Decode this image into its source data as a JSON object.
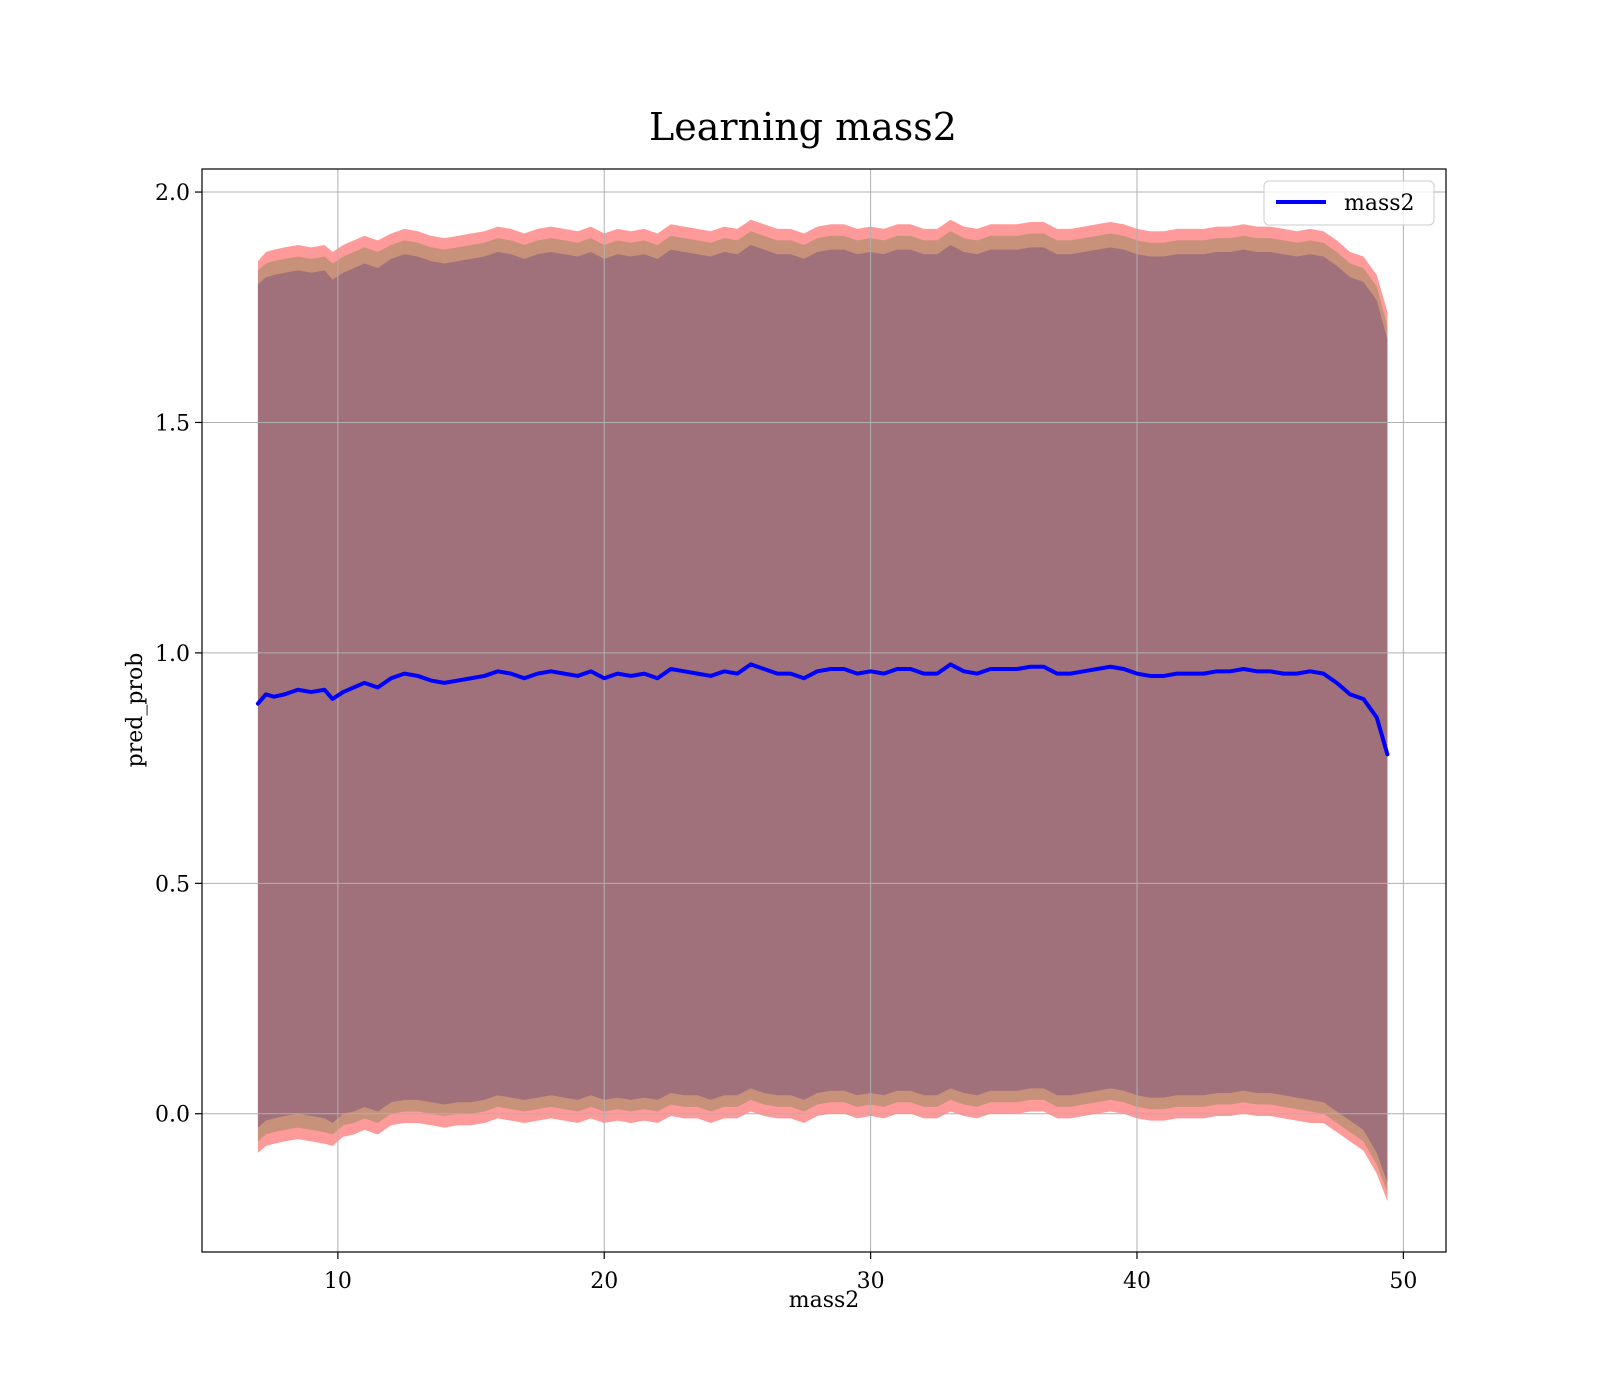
{
  "chart_data": {
    "type": "line",
    "title": "Learning mass2",
    "xlabel": "mass2",
    "ylabel": "pred_prob",
    "xlim": [
      4.9,
      51.6
    ],
    "ylim": [
      -0.3,
      2.05
    ],
    "xticks": [
      10,
      20,
      30,
      40,
      50
    ],
    "yticks": [
      0.0,
      0.5,
      1.0,
      1.5,
      2.0
    ],
    "ytick_labels": [
      "0.0",
      "0.5",
      "1.0",
      "1.5",
      "2.0"
    ],
    "grid": true,
    "legend": {
      "placement": "top-right",
      "entries": [
        "mass2"
      ]
    },
    "colors": {
      "line": "#0000ff",
      "band_outer": "#ff9a9a",
      "band_middle": "#c8917a",
      "band_inner": "#a0717a",
      "grid": "#b0b0b0"
    },
    "series": [
      {
        "name": "mass2",
        "x": [
          7.0,
          7.3,
          7.6,
          8.0,
          8.5,
          9.0,
          9.5,
          9.8,
          10.2,
          10.6,
          11.0,
          11.5,
          12.0,
          12.5,
          13.0,
          13.5,
          14.0,
          14.5,
          15.0,
          15.5,
          16.0,
          16.5,
          17.0,
          17.5,
          18.0,
          18.5,
          19.0,
          19.5,
          20.0,
          20.5,
          21.0,
          21.5,
          22.0,
          22.5,
          23.0,
          23.5,
          24.0,
          24.5,
          25.0,
          25.5,
          26.0,
          26.5,
          27.0,
          27.5,
          28.0,
          28.5,
          29.0,
          29.5,
          30.0,
          30.5,
          31.0,
          31.5,
          32.0,
          32.5,
          33.0,
          33.5,
          34.0,
          34.5,
          35.0,
          35.5,
          36.0,
          36.5,
          37.0,
          37.5,
          38.0,
          38.5,
          39.0,
          39.5,
          40.0,
          40.5,
          41.0,
          41.5,
          42.0,
          42.5,
          43.0,
          43.5,
          44.0,
          44.5,
          45.0,
          45.5,
          46.0,
          46.5,
          47.0,
          47.5,
          48.0,
          48.5,
          49.0,
          49.4
        ],
        "y": [
          0.89,
          0.91,
          0.905,
          0.91,
          0.92,
          0.915,
          0.92,
          0.9,
          0.915,
          0.925,
          0.935,
          0.925,
          0.945,
          0.955,
          0.95,
          0.94,
          0.935,
          0.94,
          0.945,
          0.95,
          0.96,
          0.955,
          0.945,
          0.955,
          0.96,
          0.955,
          0.95,
          0.96,
          0.945,
          0.955,
          0.95,
          0.955,
          0.945,
          0.965,
          0.96,
          0.955,
          0.95,
          0.96,
          0.955,
          0.975,
          0.965,
          0.955,
          0.955,
          0.945,
          0.96,
          0.965,
          0.965,
          0.955,
          0.96,
          0.955,
          0.965,
          0.965,
          0.955,
          0.955,
          0.975,
          0.96,
          0.955,
          0.965,
          0.965,
          0.965,
          0.97,
          0.97,
          0.955,
          0.955,
          0.96,
          0.965,
          0.97,
          0.965,
          0.955,
          0.95,
          0.95,
          0.955,
          0.955,
          0.955,
          0.96,
          0.96,
          0.965,
          0.96,
          0.96,
          0.955,
          0.955,
          0.96,
          0.955,
          0.935,
          0.91,
          0.9,
          0.86,
          0.78
        ]
      }
    ],
    "bands": [
      {
        "name": "outer",
        "lower": [
          -0.085,
          -0.07,
          -0.065,
          -0.06,
          -0.055,
          -0.06,
          -0.065,
          -0.07,
          -0.05,
          -0.045,
          -0.035,
          -0.045,
          -0.025,
          -0.02,
          -0.02,
          -0.025,
          -0.03,
          -0.025,
          -0.025,
          -0.02,
          -0.01,
          -0.015,
          -0.02,
          -0.015,
          -0.01,
          -0.015,
          -0.02,
          -0.01,
          -0.02,
          -0.015,
          -0.02,
          -0.015,
          -0.02,
          -0.005,
          -0.01,
          -0.01,
          -0.02,
          -0.01,
          -0.01,
          0.005,
          -0.005,
          -0.01,
          -0.01,
          -0.02,
          -0.005,
          0.0,
          0.0,
          -0.01,
          -0.005,
          -0.01,
          0.0,
          0.0,
          -0.01,
          -0.01,
          0.005,
          -0.005,
          -0.01,
          0.0,
          0.0,
          0.0,
          0.005,
          0.005,
          -0.01,
          -0.01,
          -0.005,
          0.0,
          0.005,
          0.0,
          -0.01,
          -0.015,
          -0.015,
          -0.01,
          -0.01,
          -0.01,
          -0.005,
          -0.005,
          0.0,
          -0.005,
          -0.005,
          -0.01,
          -0.015,
          -0.02,
          -0.02,
          -0.04,
          -0.06,
          -0.08,
          -0.13,
          -0.19
        ],
        "upper": [
          1.85,
          1.87,
          1.875,
          1.88,
          1.885,
          1.88,
          1.885,
          1.87,
          1.885,
          1.895,
          1.905,
          1.895,
          1.91,
          1.92,
          1.915,
          1.905,
          1.9,
          1.905,
          1.91,
          1.915,
          1.925,
          1.92,
          1.91,
          1.92,
          1.925,
          1.92,
          1.915,
          1.925,
          1.91,
          1.92,
          1.915,
          1.92,
          1.91,
          1.93,
          1.925,
          1.92,
          1.915,
          1.925,
          1.92,
          1.94,
          1.93,
          1.92,
          1.92,
          1.91,
          1.925,
          1.93,
          1.93,
          1.92,
          1.925,
          1.92,
          1.93,
          1.93,
          1.92,
          1.92,
          1.94,
          1.925,
          1.92,
          1.93,
          1.93,
          1.93,
          1.935,
          1.935,
          1.92,
          1.92,
          1.925,
          1.93,
          1.935,
          1.93,
          1.92,
          1.915,
          1.915,
          1.92,
          1.92,
          1.92,
          1.925,
          1.925,
          1.93,
          1.925,
          1.925,
          1.92,
          1.915,
          1.92,
          1.915,
          1.895,
          1.87,
          1.86,
          1.82,
          1.74
        ]
      },
      {
        "name": "middle",
        "lower": [
          -0.06,
          -0.045,
          -0.04,
          -0.035,
          -0.03,
          -0.035,
          -0.04,
          -0.045,
          -0.025,
          -0.02,
          -0.01,
          -0.02,
          0.0,
          0.005,
          0.005,
          0.0,
          -0.005,
          0.0,
          0.0,
          0.005,
          0.015,
          0.01,
          0.005,
          0.01,
          0.015,
          0.01,
          0.005,
          0.015,
          0.005,
          0.01,
          0.005,
          0.01,
          0.005,
          0.02,
          0.015,
          0.015,
          0.005,
          0.015,
          0.015,
          0.03,
          0.02,
          0.015,
          0.015,
          0.005,
          0.02,
          0.025,
          0.025,
          0.015,
          0.02,
          0.015,
          0.025,
          0.025,
          0.015,
          0.015,
          0.03,
          0.02,
          0.015,
          0.025,
          0.025,
          0.025,
          0.03,
          0.03,
          0.015,
          0.015,
          0.02,
          0.025,
          0.03,
          0.025,
          0.015,
          0.01,
          0.01,
          0.015,
          0.015,
          0.015,
          0.02,
          0.02,
          0.025,
          0.02,
          0.02,
          0.015,
          0.01,
          0.005,
          0.0,
          -0.02,
          -0.04,
          -0.06,
          -0.11,
          -0.17
        ],
        "upper": [
          1.83,
          1.845,
          1.85,
          1.855,
          1.86,
          1.855,
          1.86,
          1.845,
          1.86,
          1.87,
          1.88,
          1.87,
          1.885,
          1.895,
          1.89,
          1.88,
          1.875,
          1.88,
          1.885,
          1.89,
          1.9,
          1.895,
          1.885,
          1.895,
          1.9,
          1.895,
          1.89,
          1.9,
          1.885,
          1.895,
          1.89,
          1.895,
          1.885,
          1.905,
          1.9,
          1.895,
          1.89,
          1.9,
          1.895,
          1.915,
          1.905,
          1.895,
          1.895,
          1.885,
          1.9,
          1.905,
          1.905,
          1.895,
          1.9,
          1.895,
          1.905,
          1.905,
          1.895,
          1.895,
          1.915,
          1.9,
          1.895,
          1.905,
          1.905,
          1.905,
          1.91,
          1.91,
          1.895,
          1.895,
          1.9,
          1.905,
          1.91,
          1.905,
          1.895,
          1.89,
          1.89,
          1.895,
          1.895,
          1.895,
          1.9,
          1.9,
          1.905,
          1.9,
          1.9,
          1.895,
          1.89,
          1.895,
          1.89,
          1.87,
          1.845,
          1.835,
          1.795,
          1.71
        ]
      },
      {
        "name": "inner",
        "lower": [
          -0.03,
          -0.015,
          -0.01,
          -0.005,
          0.0,
          -0.005,
          -0.01,
          -0.02,
          0.0,
          0.005,
          0.015,
          0.005,
          0.025,
          0.03,
          0.03,
          0.025,
          0.02,
          0.025,
          0.025,
          0.03,
          0.04,
          0.035,
          0.03,
          0.035,
          0.04,
          0.035,
          0.03,
          0.04,
          0.03,
          0.035,
          0.03,
          0.035,
          0.03,
          0.045,
          0.04,
          0.04,
          0.03,
          0.04,
          0.04,
          0.055,
          0.045,
          0.04,
          0.04,
          0.03,
          0.045,
          0.05,
          0.05,
          0.04,
          0.045,
          0.04,
          0.05,
          0.05,
          0.04,
          0.04,
          0.055,
          0.045,
          0.04,
          0.05,
          0.05,
          0.05,
          0.055,
          0.055,
          0.04,
          0.04,
          0.045,
          0.05,
          0.055,
          0.05,
          0.04,
          0.035,
          0.035,
          0.04,
          0.04,
          0.04,
          0.045,
          0.045,
          0.05,
          0.045,
          0.045,
          0.04,
          0.035,
          0.03,
          0.025,
          0.005,
          -0.015,
          -0.035,
          -0.085,
          -0.15
        ],
        "upper": [
          1.8,
          1.815,
          1.82,
          1.825,
          1.83,
          1.825,
          1.83,
          1.81,
          1.825,
          1.835,
          1.845,
          1.835,
          1.855,
          1.865,
          1.86,
          1.85,
          1.845,
          1.85,
          1.855,
          1.86,
          1.87,
          1.865,
          1.855,
          1.865,
          1.87,
          1.865,
          1.86,
          1.87,
          1.855,
          1.865,
          1.86,
          1.865,
          1.855,
          1.875,
          1.87,
          1.865,
          1.86,
          1.87,
          1.865,
          1.885,
          1.875,
          1.865,
          1.865,
          1.855,
          1.87,
          1.875,
          1.875,
          1.865,
          1.87,
          1.865,
          1.875,
          1.875,
          1.865,
          1.865,
          1.885,
          1.87,
          1.865,
          1.875,
          1.875,
          1.875,
          1.88,
          1.88,
          1.865,
          1.865,
          1.87,
          1.875,
          1.88,
          1.875,
          1.865,
          1.86,
          1.86,
          1.865,
          1.865,
          1.865,
          1.87,
          1.87,
          1.875,
          1.87,
          1.87,
          1.865,
          1.86,
          1.865,
          1.86,
          1.84,
          1.815,
          1.805,
          1.765,
          1.68
        ]
      }
    ]
  }
}
